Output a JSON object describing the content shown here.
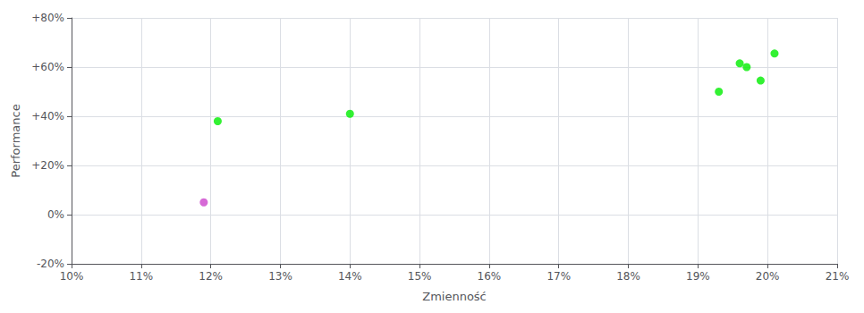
{
  "chart_data": {
    "type": "scatter",
    "xlabel": "Zmienność",
    "ylabel": "Performance",
    "xlim": [
      0.1,
      0.21
    ],
    "ylim": [
      -0.2,
      0.8
    ],
    "xticks": [
      {
        "value": 0.1,
        "label": "10%"
      },
      {
        "value": 0.11,
        "label": "11%"
      },
      {
        "value": 0.12,
        "label": "12%"
      },
      {
        "value": 0.13,
        "label": "13%"
      },
      {
        "value": 0.14,
        "label": "14%"
      },
      {
        "value": 0.15,
        "label": "15%"
      },
      {
        "value": 0.16,
        "label": "16%"
      },
      {
        "value": 0.17,
        "label": "17%"
      },
      {
        "value": 0.18,
        "label": "18%"
      },
      {
        "value": 0.19,
        "label": "19%"
      },
      {
        "value": 0.2,
        "label": "20%"
      },
      {
        "value": 0.21,
        "label": "21%"
      }
    ],
    "yticks": [
      {
        "value": -0.2,
        "label": "-20%"
      },
      {
        "value": 0.0,
        "label": "0%"
      },
      {
        "value": 0.2,
        "label": "+20%"
      },
      {
        "value": 0.4,
        "label": "+40%"
      },
      {
        "value": 0.6,
        "label": "+60%"
      },
      {
        "value": 0.8,
        "label": "+80%"
      }
    ],
    "grid": true,
    "series": [
      {
        "color": "#00ee00",
        "x": [
          0.121,
          0.14,
          0.193,
          0.196,
          0.197,
          0.199,
          0.201
        ],
        "values": [
          0.38,
          0.41,
          0.5,
          0.615,
          0.6,
          0.545,
          0.655
        ]
      },
      {
        "color": "#cc44cc",
        "x": [
          0.119
        ],
        "values": [
          0.05
        ]
      }
    ]
  }
}
